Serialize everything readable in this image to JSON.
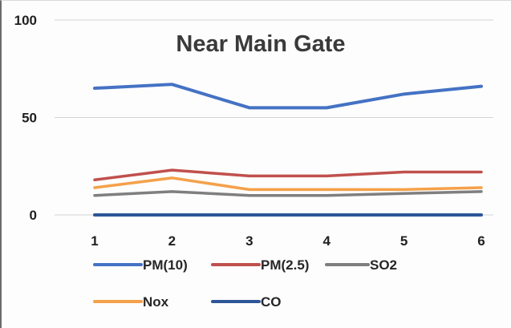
{
  "chart_data": {
    "type": "line",
    "title": "Near Main Gate",
    "xlabel": "",
    "ylabel": "",
    "x": [
      "1",
      "2",
      "3",
      "4",
      "5",
      "6"
    ],
    "ylim": [
      0,
      100
    ],
    "yticks": [
      "100",
      "50",
      "0"
    ],
    "grid": true,
    "legend_position": "bottom",
    "series": [
      {
        "name": "PM(10)",
        "color": "#4472c4",
        "values": [
          65,
          67,
          55,
          55,
          62,
          66
        ]
      },
      {
        "name": "PM(2.5)",
        "color": "#c0504d",
        "values": [
          18,
          23,
          20,
          20,
          22,
          22
        ]
      },
      {
        "name": "SO2",
        "color": "#7f7f7f",
        "values": [
          10,
          12,
          10,
          10,
          11,
          12
        ]
      },
      {
        "name": "Nox",
        "color": "#f4a14a",
        "values": [
          14,
          19,
          13,
          13,
          13,
          14
        ]
      },
      {
        "name": "CO",
        "color": "#2e5597",
        "values": [
          0,
          0,
          0,
          0,
          0,
          0
        ]
      }
    ]
  }
}
